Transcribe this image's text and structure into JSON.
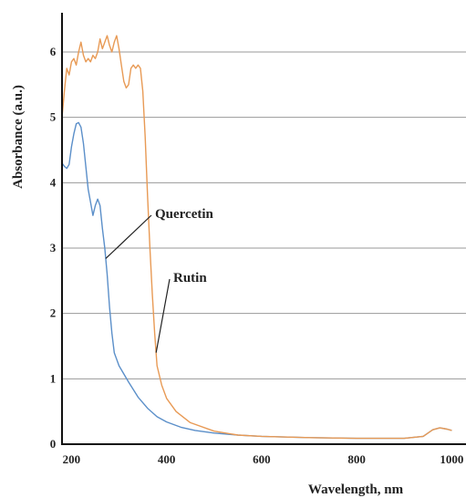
{
  "chart_data": {
    "type": "line",
    "xlabel": "Wavelength, nm",
    "ylabel": "Absorbance (a.u.)",
    "xlim": [
      180,
      1030
    ],
    "ylim": [
      0,
      6.6
    ],
    "xticks": [
      200,
      400,
      600,
      800,
      1000
    ],
    "yticks": [
      0,
      1,
      2,
      3,
      4,
      5,
      6
    ],
    "grid": "horizontal",
    "series": [
      {
        "name": "Quercetin",
        "color": "#5b8fc9",
        "points": [
          [
            180,
            4.3
          ],
          [
            185,
            4.25
          ],
          [
            190,
            4.22
          ],
          [
            195,
            4.28
          ],
          [
            200,
            4.55
          ],
          [
            205,
            4.75
          ],
          [
            210,
            4.9
          ],
          [
            215,
            4.92
          ],
          [
            220,
            4.85
          ],
          [
            225,
            4.6
          ],
          [
            230,
            4.25
          ],
          [
            235,
            3.9
          ],
          [
            240,
            3.7
          ],
          [
            245,
            3.5
          ],
          [
            250,
            3.65
          ],
          [
            255,
            3.75
          ],
          [
            260,
            3.65
          ],
          [
            265,
            3.3
          ],
          [
            270,
            3.0
          ],
          [
            275,
            2.6
          ],
          [
            280,
            2.1
          ],
          [
            285,
            1.7
          ],
          [
            290,
            1.4
          ],
          [
            300,
            1.2
          ],
          [
            320,
            0.95
          ],
          [
            340,
            0.72
          ],
          [
            360,
            0.55
          ],
          [
            380,
            0.42
          ],
          [
            400,
            0.34
          ],
          [
            430,
            0.26
          ],
          [
            460,
            0.21
          ],
          [
            500,
            0.17
          ],
          [
            550,
            0.14
          ],
          [
            600,
            0.12
          ],
          [
            700,
            0.1
          ],
          [
            800,
            0.09
          ],
          [
            900,
            0.09
          ],
          [
            940,
            0.12
          ],
          [
            960,
            0.22
          ],
          [
            975,
            0.25
          ],
          [
            990,
            0.23
          ],
          [
            1000,
            0.21
          ]
        ]
      },
      {
        "name": "Rutin",
        "color": "#e89a55",
        "points": [
          [
            180,
            5.0
          ],
          [
            185,
            5.4
          ],
          [
            190,
            5.75
          ],
          [
            195,
            5.65
          ],
          [
            200,
            5.85
          ],
          [
            205,
            5.9
          ],
          [
            210,
            5.8
          ],
          [
            215,
            6.0
          ],
          [
            220,
            6.15
          ],
          [
            225,
            5.95
          ],
          [
            230,
            5.85
          ],
          [
            235,
            5.9
          ],
          [
            240,
            5.85
          ],
          [
            245,
            5.95
          ],
          [
            250,
            5.9
          ],
          [
            255,
            6.0
          ],
          [
            260,
            6.2
          ],
          [
            265,
            6.05
          ],
          [
            270,
            6.15
          ],
          [
            275,
            6.25
          ],
          [
            280,
            6.1
          ],
          [
            285,
            6.0
          ],
          [
            290,
            6.15
          ],
          [
            295,
            6.25
          ],
          [
            300,
            6.05
          ],
          [
            305,
            5.8
          ],
          [
            310,
            5.55
          ],
          [
            315,
            5.45
          ],
          [
            320,
            5.5
          ],
          [
            325,
            5.75
          ],
          [
            330,
            5.8
          ],
          [
            335,
            5.75
          ],
          [
            340,
            5.8
          ],
          [
            345,
            5.75
          ],
          [
            350,
            5.4
          ],
          [
            355,
            4.7
          ],
          [
            360,
            3.8
          ],
          [
            365,
            3.0
          ],
          [
            370,
            2.3
          ],
          [
            375,
            1.7
          ],
          [
            380,
            1.2
          ],
          [
            390,
            0.9
          ],
          [
            400,
            0.7
          ],
          [
            420,
            0.5
          ],
          [
            450,
            0.33
          ],
          [
            500,
            0.2
          ],
          [
            550,
            0.14
          ],
          [
            600,
            0.12
          ],
          [
            700,
            0.1
          ],
          [
            800,
            0.09
          ],
          [
            900,
            0.09
          ],
          [
            940,
            0.12
          ],
          [
            960,
            0.22
          ],
          [
            975,
            0.25
          ],
          [
            990,
            0.23
          ],
          [
            1000,
            0.21
          ]
        ]
      }
    ],
    "annotations": [
      {
        "text": "Quercetin",
        "series": "Quercetin"
      },
      {
        "text": "Rutin",
        "series": "Rutin"
      }
    ]
  }
}
